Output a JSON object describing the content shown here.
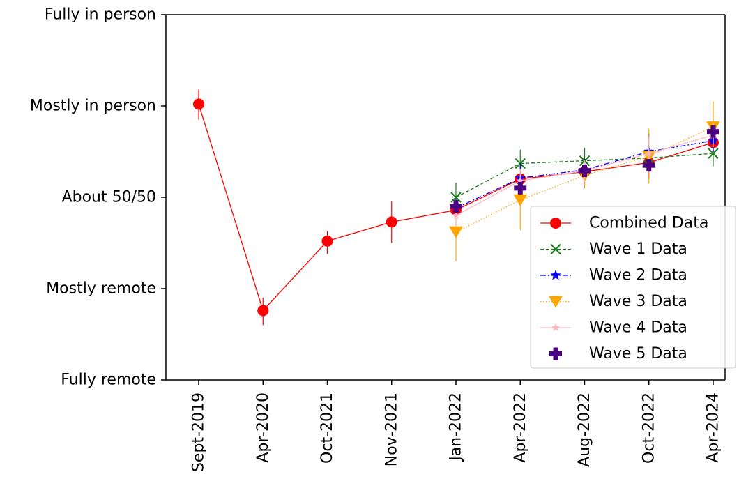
{
  "chart_data": {
    "type": "line",
    "title": "",
    "xlabel": "",
    "ylabel": "",
    "categories": [
      "Sept-2019",
      "Apr-2020",
      "Oct-2021",
      "Nov-2021",
      "Jan-2022",
      "Apr-2022",
      "Aug-2022",
      "Oct-2022",
      "Apr-2024"
    ],
    "y_tick_labels": [
      "Fully remote",
      "Mostly remote",
      "About 50/50",
      "Mostly in person",
      "Fully in person"
    ],
    "y_tick_values": [
      0,
      1,
      2,
      3,
      4
    ],
    "ylim": [
      0,
      4
    ],
    "grid": false,
    "legend_position": "right",
    "series": [
      {
        "name": "Combined Data",
        "color": "#ff0000",
        "marker": "circle",
        "line_style": "solid",
        "points": [
          {
            "x": "Sept-2019",
            "y": 3.02,
            "lo": 2.85,
            "hi": 3.18
          },
          {
            "x": "Apr-2020",
            "y": 0.76,
            "lo": 0.6,
            "hi": 0.9
          },
          {
            "x": "Oct-2021",
            "y": 1.52,
            "lo": 1.38,
            "hi": 1.63
          },
          {
            "x": "Nov-2021",
            "y": 1.73,
            "lo": 1.5,
            "hi": 1.96
          },
          {
            "x": "Jan-2022",
            "y": 1.86,
            "lo": 1.76,
            "hi": 1.97
          },
          {
            "x": "Apr-2022",
            "y": 2.2,
            "lo": 2.08,
            "hi": 2.32
          },
          {
            "x": "Aug-2022",
            "y": 2.28,
            "lo": 2.13,
            "hi": 2.45
          },
          {
            "x": "Oct-2022",
            "y": 2.38,
            "lo": 2.2,
            "hi": 2.56
          },
          {
            "x": "Apr-2024",
            "y": 2.6,
            "lo": 2.46,
            "hi": 2.74
          }
        ]
      },
      {
        "name": "Wave 1 Data",
        "color": "#1a7f1a",
        "marker": "x",
        "line_style": "dashed",
        "points": [
          {
            "x": "Jan-2022",
            "y": 2.0,
            "lo": 1.84,
            "hi": 2.16
          },
          {
            "x": "Apr-2022",
            "y": 2.37,
            "lo": 2.22,
            "hi": 2.52
          },
          {
            "x": "Aug-2022",
            "y": 2.4,
            "lo": 2.26,
            "hi": 2.54
          },
          {
            "x": "Oct-2022",
            "y": 2.43,
            "lo": 2.27,
            "hi": 2.59
          },
          {
            "x": "Apr-2024",
            "y": 2.48,
            "lo": 2.34,
            "hi": 2.62
          }
        ]
      },
      {
        "name": "Wave 2 Data",
        "color": "#0000ff",
        "marker": "star",
        "line_style": "dashdot",
        "points": [
          {
            "x": "Jan-2022",
            "y": 1.88,
            "lo": 1.78,
            "hi": 1.98
          },
          {
            "x": "Apr-2022",
            "y": 2.21,
            "lo": 2.07,
            "hi": 2.37
          },
          {
            "x": "Aug-2022",
            "y": 2.3,
            "lo": 2.18,
            "hi": 2.42
          },
          {
            "x": "Oct-2022",
            "y": 2.5,
            "lo": 2.3,
            "hi": 2.7
          },
          {
            "x": "Apr-2024",
            "y": 2.62,
            "lo": 2.5,
            "hi": 2.74
          }
        ]
      },
      {
        "name": "Wave 3 Data",
        "color": "#ffa500",
        "marker": "triangle-down",
        "line_style": "dotted",
        "points": [
          {
            "x": "Jan-2022",
            "y": 1.62,
            "lo": 1.3,
            "hi": 1.94
          },
          {
            "x": "Apr-2022",
            "y": 1.97,
            "lo": 1.64,
            "hi": 2.3
          },
          {
            "x": "Aug-2022",
            "y": 2.24,
            "lo": 2.1,
            "hi": 2.38
          },
          {
            "x": "Oct-2022",
            "y": 2.45,
            "lo": 2.15,
            "hi": 2.75
          },
          {
            "x": "Apr-2024",
            "y": 2.77,
            "lo": 2.55,
            "hi": 3.05
          }
        ]
      },
      {
        "name": "Wave 4 Data",
        "color": "#ffb6c1",
        "marker": "star-small",
        "line_style": "solid",
        "points": [
          {
            "x": "Jan-2022",
            "y": 1.8,
            "lo": 1.68,
            "hi": 1.92
          },
          {
            "x": "Apr-2022",
            "y": 2.18,
            "lo": 2.05,
            "hi": 2.31
          },
          {
            "x": "Aug-2022",
            "y": 2.29,
            "lo": 2.17,
            "hi": 2.41
          },
          {
            "x": "Oct-2022",
            "y": 2.48,
            "lo": 2.3,
            "hi": 2.66
          },
          {
            "x": "Apr-2024",
            "y": 2.68,
            "lo": 2.55,
            "hi": 2.81
          }
        ]
      },
      {
        "name": "Wave 5 Data",
        "color": "#4b0082",
        "marker": "plus-filled",
        "line_style": "none",
        "points": [
          {
            "x": "Jan-2022",
            "y": 1.9
          },
          {
            "x": "Apr-2022",
            "y": 2.1
          },
          {
            "x": "Aug-2022",
            "y": 2.29
          },
          {
            "x": "Oct-2022",
            "y": 2.35
          },
          {
            "x": "Apr-2024",
            "y": 2.72
          }
        ]
      }
    ]
  }
}
